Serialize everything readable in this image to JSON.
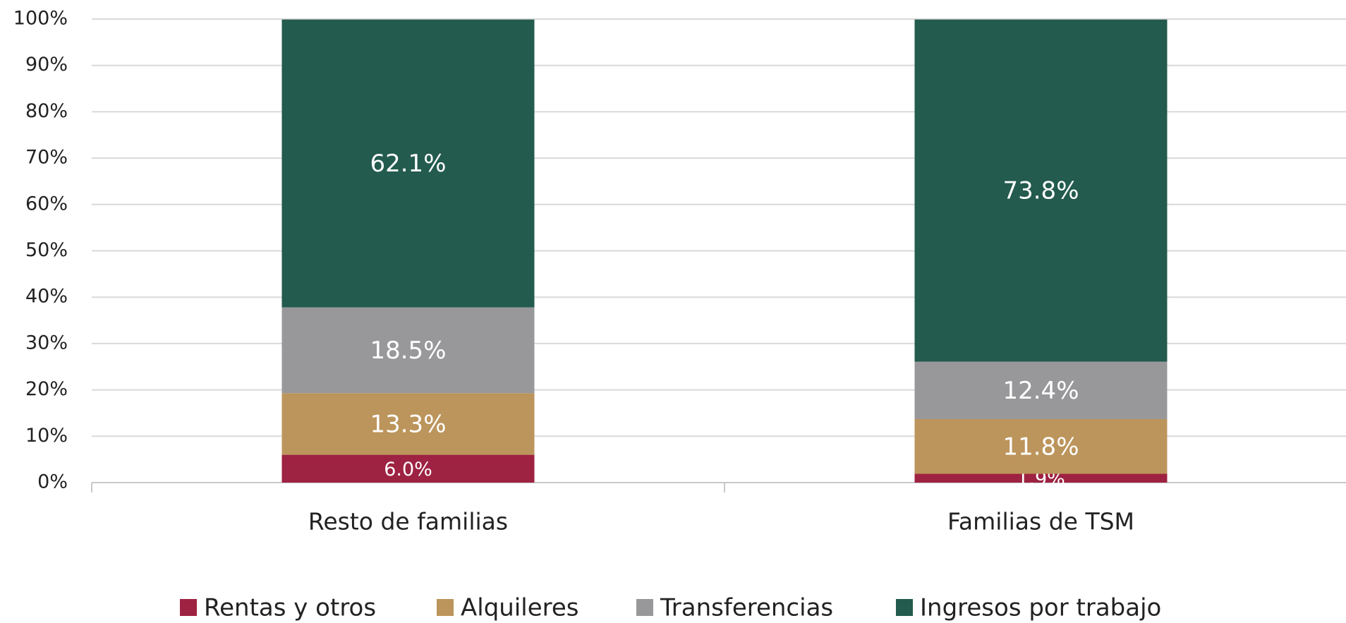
{
  "chart_data": {
    "type": "stacked_bar",
    "categories": [
      "Resto de familias",
      "Familias de TSM"
    ],
    "series": [
      {
        "name": "Rentas y otros",
        "color": "#9e2241",
        "values": [
          6.0,
          1.9
        ],
        "value_labels": [
          "6.0%",
          "1.9%"
        ]
      },
      {
        "name": "Alquileres",
        "color": "#bc955c",
        "values": [
          13.3,
          11.8
        ],
        "value_labels": [
          "13.3%",
          "11.8%"
        ]
      },
      {
        "name": "Transferencias",
        "color": "#98989a",
        "values": [
          18.5,
          12.4
        ],
        "value_labels": [
          "18.5%",
          "12.4%"
        ]
      },
      {
        "name": "Ingresos por trabajo",
        "color": "#235b4e",
        "values": [
          62.1,
          73.8
        ],
        "value_labels": [
          "62.1%",
          "73.8%"
        ]
      }
    ],
    "ylim": [
      0,
      100
    ],
    "yticks": [
      {
        "value": 0,
        "label": "0%"
      },
      {
        "value": 10,
        "label": "10%"
      },
      {
        "value": 20,
        "label": "20%"
      },
      {
        "value": 30,
        "label": "30%"
      },
      {
        "value": 40,
        "label": "40%"
      },
      {
        "value": 50,
        "label": "50%"
      },
      {
        "value": 60,
        "label": "60%"
      },
      {
        "value": 70,
        "label": "70%"
      },
      {
        "value": 80,
        "label": "80%"
      },
      {
        "value": 90,
        "label": "90%"
      },
      {
        "value": 100,
        "label": "100%"
      }
    ],
    "grid": true,
    "legend": "bottom"
  }
}
